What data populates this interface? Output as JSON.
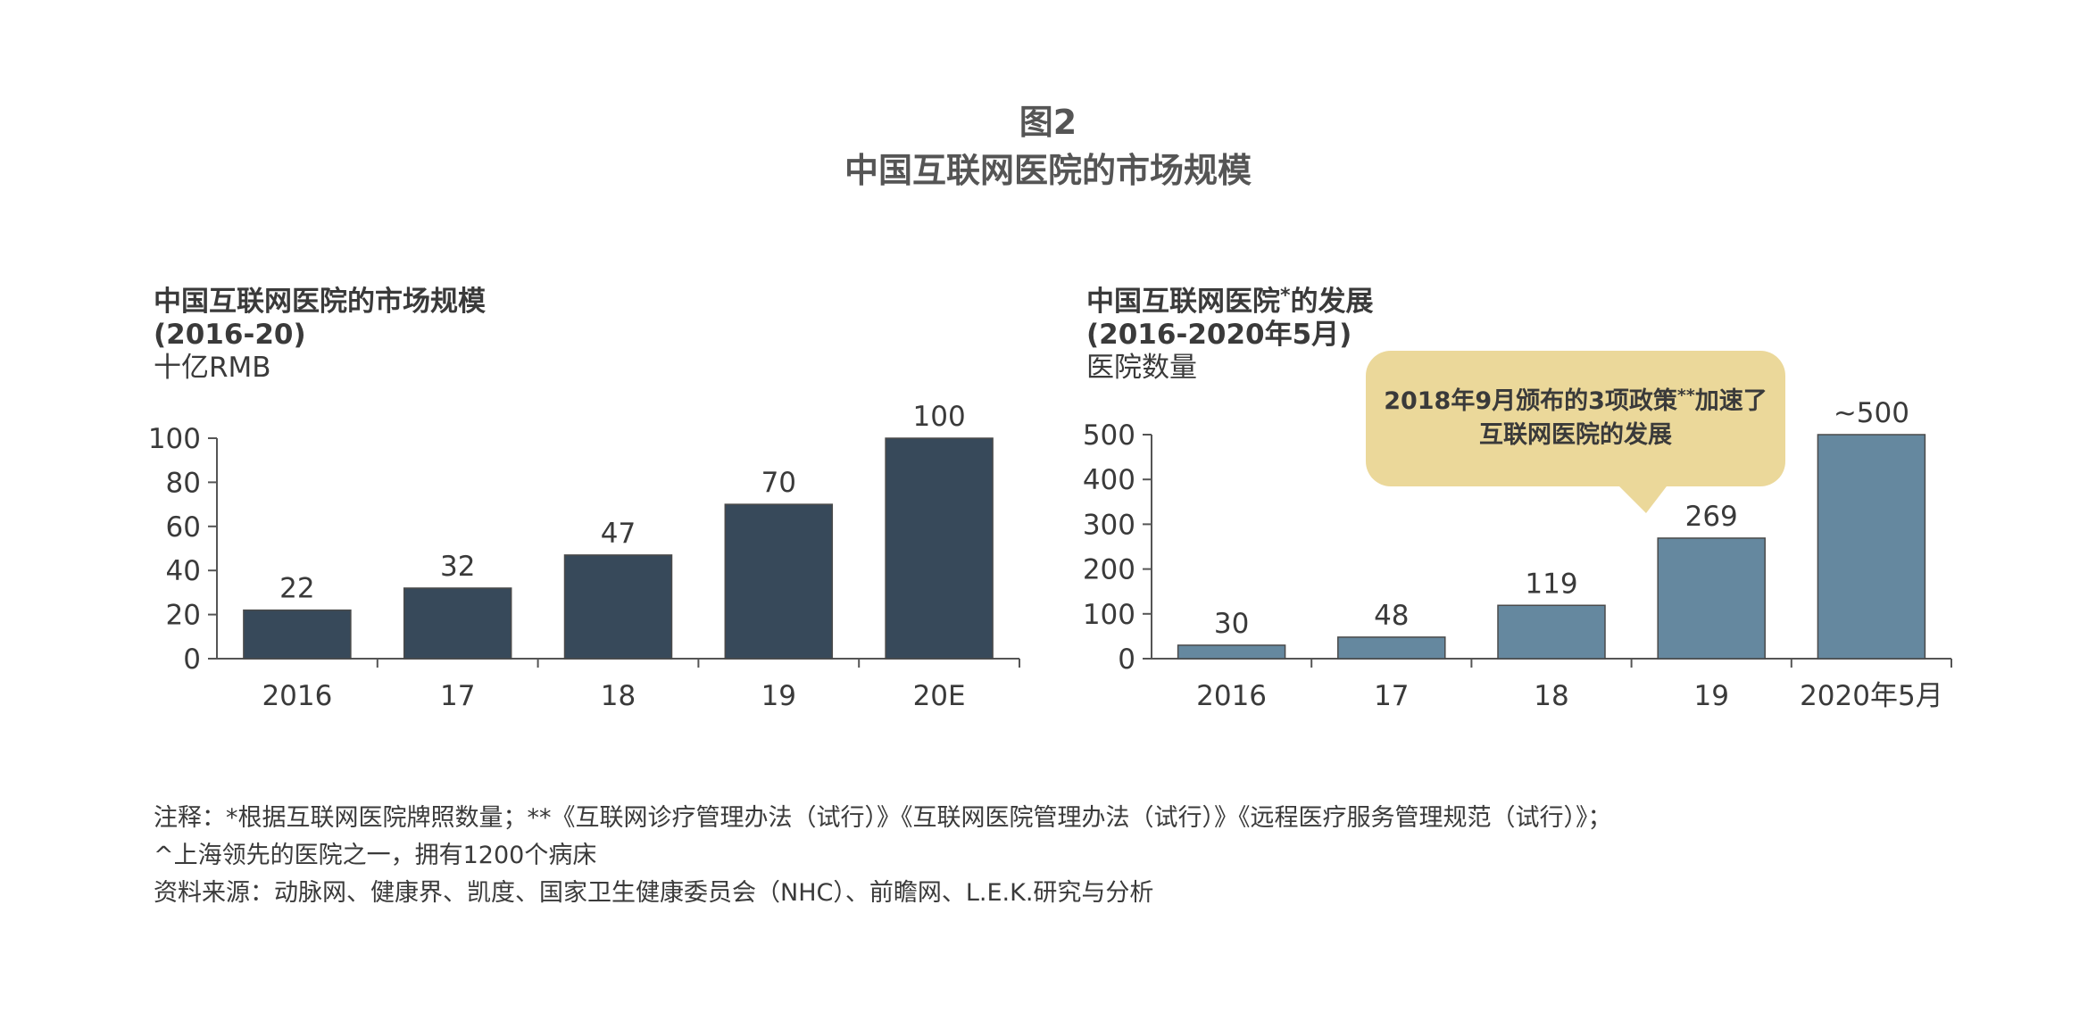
{
  "figure": {
    "number": "图2",
    "title": "中国互联网医院的市场规模"
  },
  "left_panel": {
    "title": "中国互联网医院的市场规模",
    "period": "(2016-20)",
    "unit": "十亿RMB"
  },
  "right_panel": {
    "title": "中国互联网医院",
    "title_mark": "*",
    "title_tail": "的发展",
    "period": "(2016-2020年5月)",
    "unit": "医院数量"
  },
  "callout": {
    "line1_pre": "2018年9月颁布的3项政策",
    "line1_mark": "**",
    "line1_post": "加速了",
    "line2": "互联网医院的发展"
  },
  "chart_data": [
    {
      "type": "bar",
      "categories": [
        "2016",
        "17",
        "18",
        "19",
        "20E"
      ],
      "values": [
        22,
        32,
        47,
        70,
        100
      ],
      "value_labels": [
        "22",
        "32",
        "47",
        "70",
        "100"
      ],
      "yticks": [
        "0",
        "20",
        "40",
        "60",
        "80",
        "100"
      ],
      "ylim": [
        0,
        100
      ],
      "color": "#37495a",
      "grid": false
    },
    {
      "type": "bar",
      "categories": [
        "2016",
        "17",
        "18",
        "19",
        "2020年5月"
      ],
      "values": [
        30,
        48,
        119,
        269,
        500
      ],
      "value_labels": [
        "30",
        "48",
        "119",
        "269",
        "~500"
      ],
      "yticks": [
        "0",
        "100",
        "200",
        "300",
        "400",
        "500"
      ],
      "ylim": [
        0,
        500
      ],
      "color": "#65889f",
      "grid": false
    }
  ],
  "notes": [
    "注释：*根据互联网医院牌照数量；**《互联网诊疗管理办法（试行）》《互联网医院管理办法（试行）》《远程医疗服务管理规范（试行）》；",
    "^上海领先的医院之一，拥有1200个病床",
    "资料来源：动脉网、健康界、凯度、国家卫生健康委员会（NHC）、前瞻网、L.E.K.研究与分析"
  ]
}
